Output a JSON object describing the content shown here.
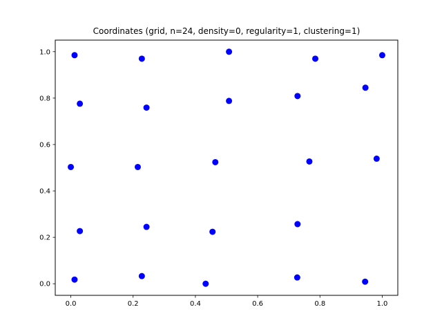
{
  "chart_data": {
    "type": "scatter",
    "title": "Coordinates (grid, n=24, density=0, regularity=1, clustering=1)",
    "xlabel": "",
    "ylabel": "",
    "xlim": [
      -0.05,
      1.05
    ],
    "ylim": [
      -0.05,
      1.05
    ],
    "xticks": [
      0.0,
      0.2,
      0.4,
      0.6,
      0.8,
      1.0
    ],
    "yticks": [
      0.0,
      0.2,
      0.4,
      0.6,
      0.8,
      1.0
    ],
    "xtick_labels": [
      "0.0",
      "0.2",
      "0.4",
      "0.6",
      "0.8",
      "1.0"
    ],
    "ytick_labels": [
      "0.0",
      "0.2",
      "0.4",
      "0.6",
      "0.8",
      "1.0"
    ],
    "grid": false,
    "color": "#0000ff",
    "series": [
      {
        "points": [
          [
            0.012,
            0.018
          ],
          [
            0.228,
            0.033
          ],
          [
            0.433,
            0.0
          ],
          [
            0.727,
            0.027
          ],
          [
            0.945,
            0.009
          ],
          [
            0.029,
            0.227
          ],
          [
            0.243,
            0.245
          ],
          [
            0.455,
            0.224
          ],
          [
            0.728,
            0.257
          ],
          [
            0.0,
            0.503
          ],
          [
            0.215,
            0.503
          ],
          [
            0.464,
            0.524
          ],
          [
            0.766,
            0.527
          ],
          [
            0.982,
            0.539
          ],
          [
            0.029,
            0.776
          ],
          [
            0.243,
            0.759
          ],
          [
            0.508,
            0.788
          ],
          [
            0.728,
            0.809
          ],
          [
            0.946,
            0.845
          ],
          [
            0.012,
            0.985
          ],
          [
            0.228,
            0.97
          ],
          [
            0.508,
            1.0
          ],
          [
            0.785,
            0.97
          ],
          [
            1.0,
            0.985
          ]
        ]
      }
    ]
  }
}
